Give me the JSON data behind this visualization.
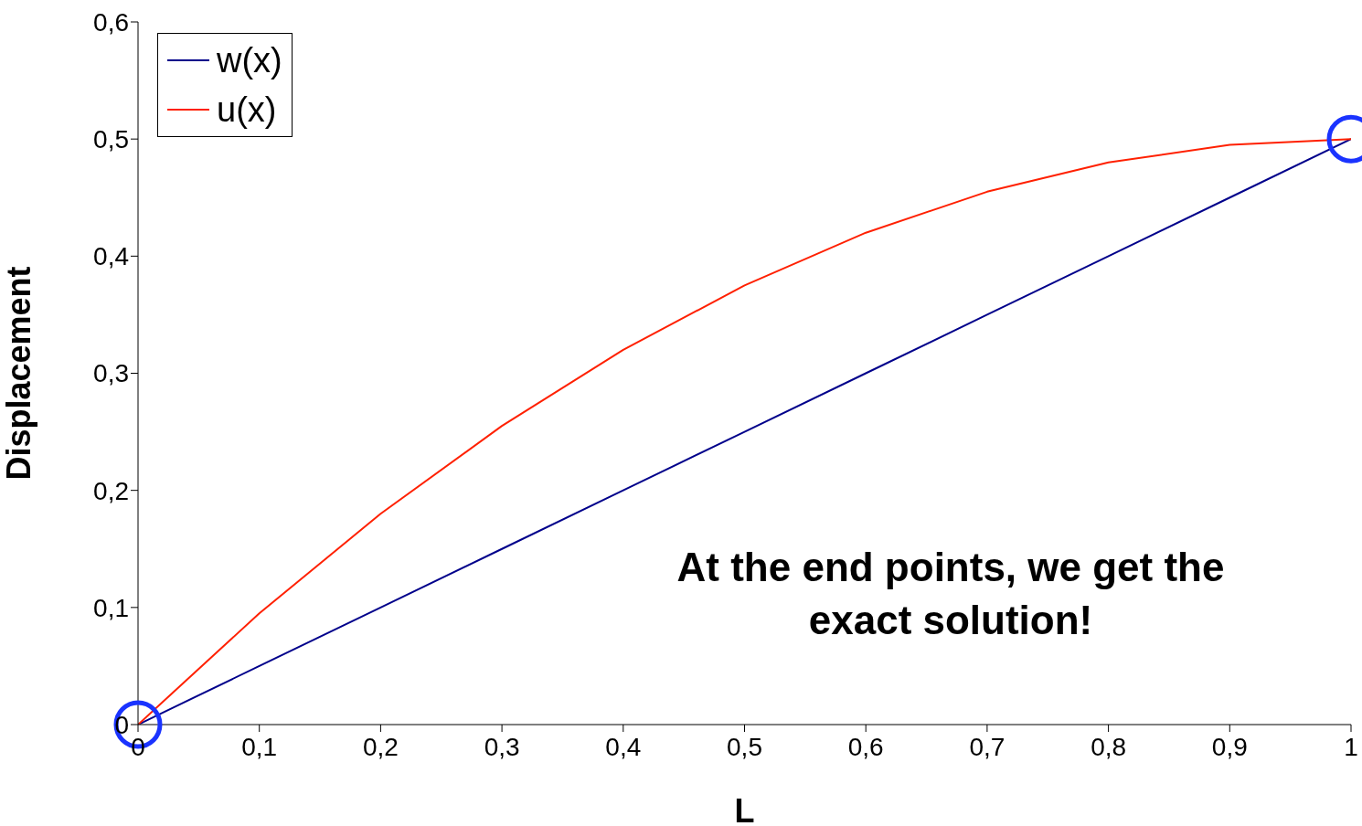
{
  "chart_data": {
    "type": "line",
    "xlabel": "L",
    "ylabel": "Displacement",
    "x": [
      0,
      0.1,
      0.2,
      0.3,
      0.4,
      0.5,
      0.6,
      0.7,
      0.8,
      0.9,
      1
    ],
    "series": [
      {
        "name": "w(x)",
        "color": "#00008b",
        "values": [
          0,
          0.05,
          0.1,
          0.15,
          0.2,
          0.25,
          0.3,
          0.35,
          0.4,
          0.45,
          0.5
        ]
      },
      {
        "name": "u(x)",
        "color": "#ff2000",
        "values": [
          0,
          0.095,
          0.18,
          0.255,
          0.32,
          0.375,
          0.42,
          0.455,
          0.48,
          0.495,
          0.5
        ]
      }
    ],
    "xlim": [
      0,
      1
    ],
    "ylim": [
      0,
      0.6
    ],
    "xticks": [
      0,
      {
        "value": 0.1,
        "label": "0,1"
      },
      {
        "value": 0.2,
        "label": "0,2"
      },
      {
        "value": 0.3,
        "label": "0,3"
      },
      {
        "value": 0.4,
        "label": "0,4"
      },
      {
        "value": 0.5,
        "label": "0,5"
      },
      {
        "value": 0.6,
        "label": "0,6"
      },
      {
        "value": 0.7,
        "label": "0,7"
      },
      {
        "value": 0.8,
        "label": "0,8"
      },
      {
        "value": 0.9,
        "label": "0,9"
      },
      1
    ],
    "yticks": [
      0,
      {
        "value": 0.1,
        "label": "0,1"
      },
      {
        "value": 0.2,
        "label": "0,2"
      },
      {
        "value": 0.3,
        "label": "0,3"
      },
      {
        "value": 0.4,
        "label": "0,4"
      },
      {
        "value": 0.5,
        "label": "0,5"
      },
      {
        "value": 0.6,
        "label": "0,6"
      }
    ],
    "annotations": [
      "At the end points, we get the exact solution!"
    ],
    "grid": false,
    "legend": "top left",
    "marker": "none",
    "line_style": "solid"
  }
}
